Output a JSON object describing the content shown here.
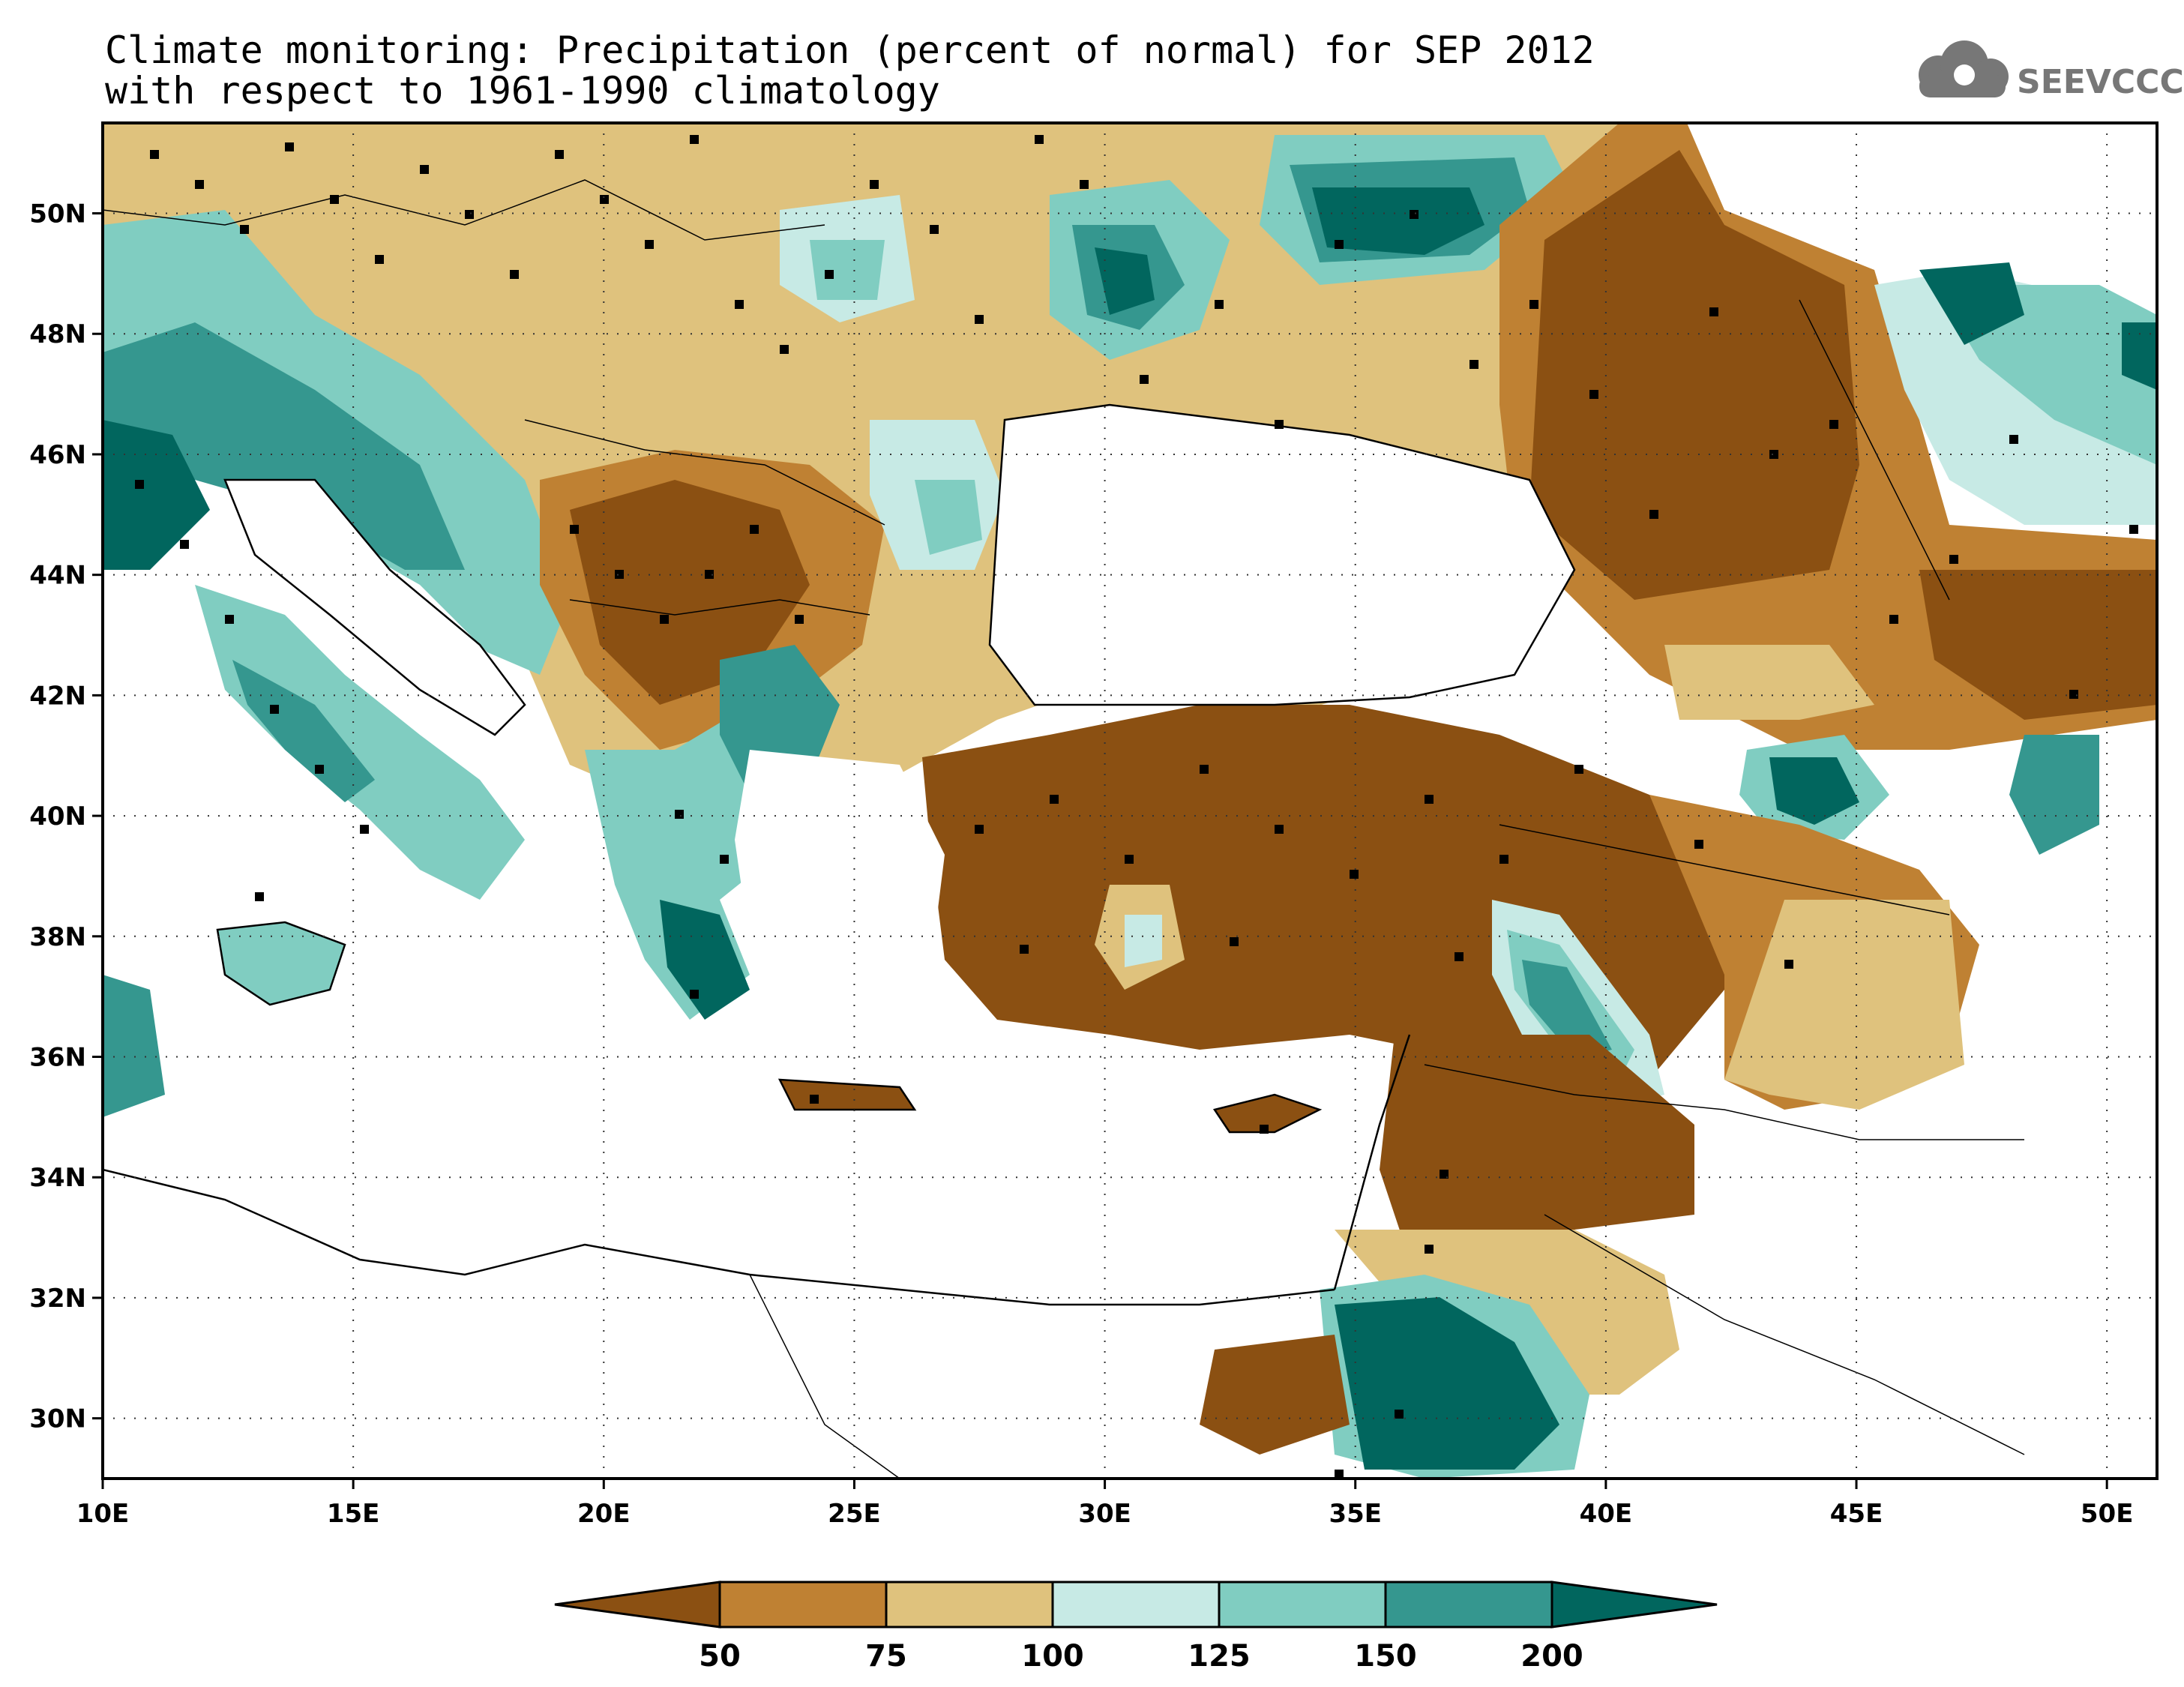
{
  "title": {
    "line1": "Climate monitoring: Precipitation (percent of normal) for SEP 2012",
    "line2": "with respect to 1961-1990 climatology"
  },
  "logo": {
    "text": "SEEVCCC",
    "icon": "cloud-icon"
  },
  "map": {
    "lon_range": [
      10,
      51
    ],
    "lat_range": [
      29,
      51.5
    ],
    "lon_ticks": [
      "10E",
      "15E",
      "20E",
      "25E",
      "30E",
      "35E",
      "40E",
      "45E",
      "50E"
    ],
    "lat_ticks": [
      "30N",
      "32N",
      "34N",
      "36N",
      "38N",
      "40N",
      "42N",
      "44N",
      "46N",
      "48N",
      "50N"
    ],
    "grid": "dotted"
  },
  "colorbar": {
    "labels": [
      "50",
      "75",
      "100",
      "125",
      "150",
      "200"
    ],
    "colors": [
      "#8b5012",
      "#bf8133",
      "#dfc27d",
      "#c7eae5",
      "#80cdc1",
      "#35978f",
      "#01665e"
    ]
  }
}
